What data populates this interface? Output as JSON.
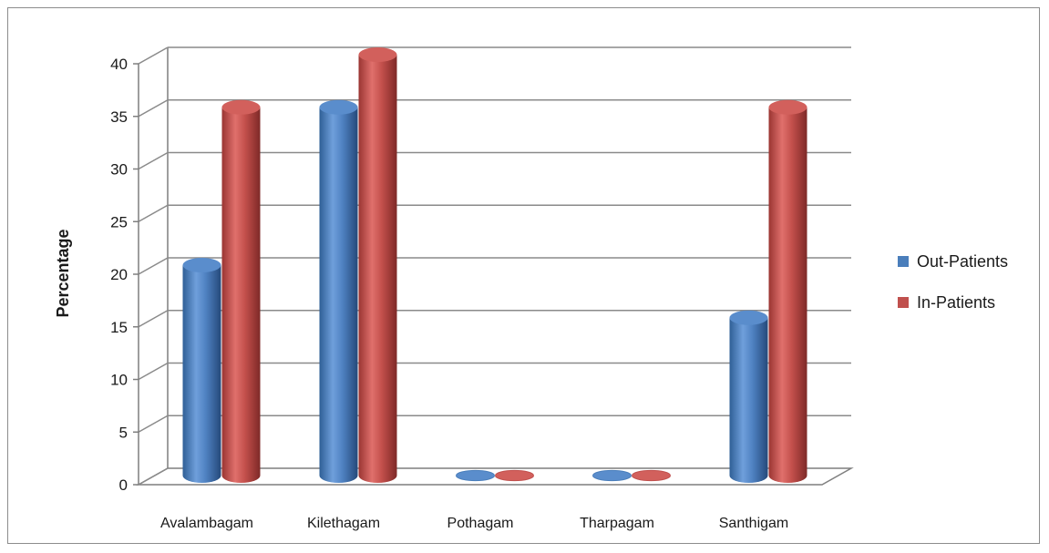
{
  "chart_data": {
    "type": "bar",
    "style": "3d-cylinder",
    "categories": [
      "Avalambagam",
      "Kilethagam",
      "Pothagam",
      "Tharpagam",
      "Santhigam"
    ],
    "series": [
      {
        "name": "Out-Patients",
        "values": [
          20,
          35,
          0,
          0,
          15
        ],
        "color": "#4a7ebb"
      },
      {
        "name": "In-Patients",
        "values": [
          35,
          40,
          0,
          0,
          35
        ],
        "color": "#c0504d"
      }
    ],
    "title": "",
    "xlabel": "",
    "ylabel": "Percentage",
    "ylim": [
      0,
      40
    ],
    "yticks": [
      0,
      5,
      10,
      15,
      20,
      25,
      30,
      35,
      40
    ],
    "grid": true,
    "legend_position": "right"
  }
}
